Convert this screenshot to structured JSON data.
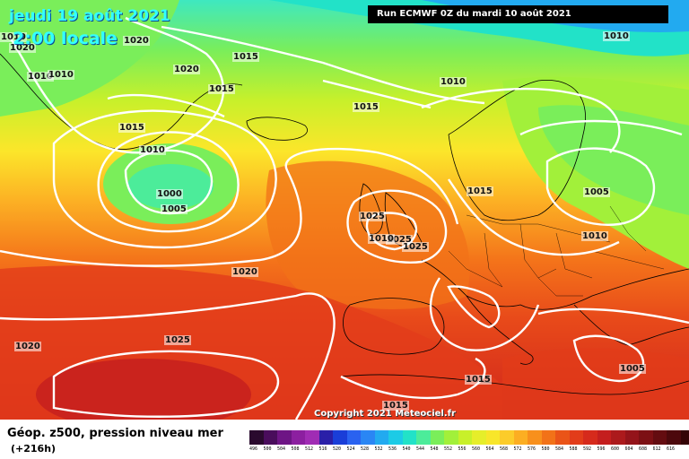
{
  "header": {
    "date": "jeudi 19 août 2021",
    "time": "2:00 locale",
    "run": "Run ECMWF 0Z du mardi 10 août 2021"
  },
  "copyright": "Copyright 2021 Meteociel.fr",
  "footer": {
    "product": "Géop. z500, pression niveau mer",
    "lead": "(+216h)"
  },
  "isobar_labels": [
    {
      "text": "1010"
    },
    {
      "text": "1020"
    },
    {
      "text": "1020"
    },
    {
      "text": "1010"
    },
    {
      "text": "1010"
    },
    {
      "text": "1020"
    },
    {
      "text": "1015"
    },
    {
      "text": "1015"
    },
    {
      "text": "1010"
    },
    {
      "text": "1015"
    },
    {
      "text": "1010"
    },
    {
      "text": "1000"
    },
    {
      "text": "1005"
    },
    {
      "text": "1015"
    },
    {
      "text": "1010"
    },
    {
      "text": "1015"
    },
    {
      "text": "1005"
    },
    {
      "text": "1025"
    },
    {
      "text": "1025"
    },
    {
      "text": "1025"
    },
    {
      "text": "1010"
    },
    {
      "text": "1020"
    },
    {
      "text": "1010"
    },
    {
      "text": "1020"
    },
    {
      "text": "1025"
    },
    {
      "text": "1015"
    },
    {
      "text": "1015"
    },
    {
      "text": "1005"
    }
  ],
  "colors": {
    "scale": [
      "#2a0a2e",
      "#4a0d5c",
      "#6e1585",
      "#8c1fa0",
      "#a02cb4",
      "#2a1fa8",
      "#1a3ed8",
      "#2a62f0",
      "#2a86f4",
      "#22aaf0",
      "#1ccbe6",
      "#22e2c8",
      "#4cec9a",
      "#7aee5a",
      "#a2f03a",
      "#c8f02a",
      "#e6ee2a",
      "#f8e62a",
      "#fccc2a",
      "#fcae22",
      "#f8901c",
      "#f27218",
      "#ea5418",
      "#e23c1a",
      "#d62a1c",
      "#c41e1e",
      "#ac1a1c",
      "#94141a",
      "#7c1014",
      "#640c10",
      "#4c080c",
      "#340406"
    ],
    "ticks": [
      "496",
      "500",
      "504",
      "508",
      "512",
      "516",
      "520",
      "524",
      "528",
      "532",
      "536",
      "540",
      "544",
      "548",
      "552",
      "556",
      "560",
      "564",
      "568",
      "572",
      "576",
      "580",
      "584",
      "588",
      "592",
      "596",
      "600",
      "604",
      "608",
      "612",
      "616",
      ""
    ]
  }
}
